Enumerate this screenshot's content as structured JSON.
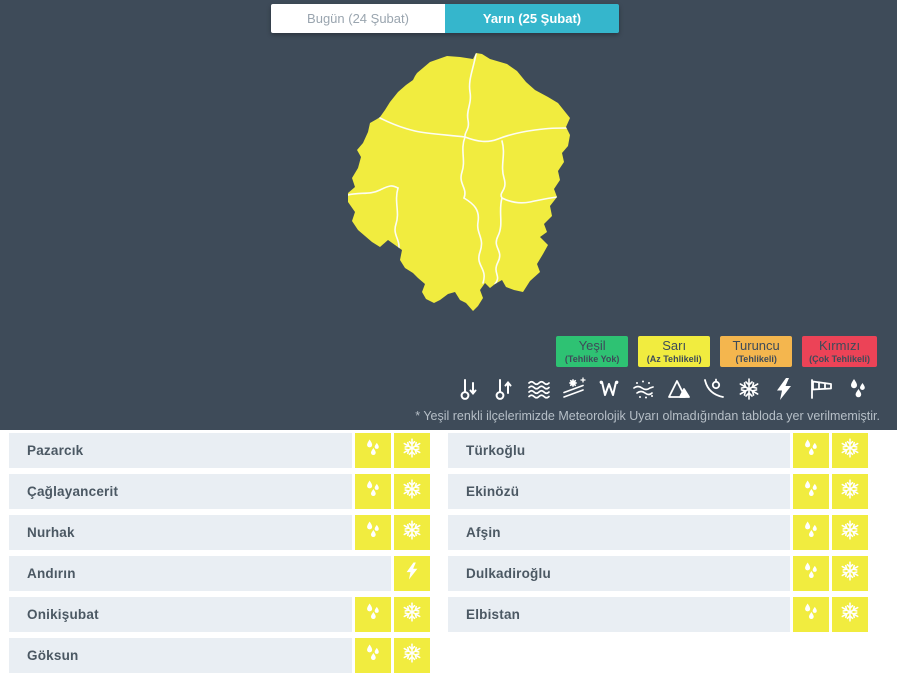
{
  "tabs": [
    {
      "label": "Bugün (24 Şubat)",
      "active": false
    },
    {
      "label": "Yarın (25 Şubat)",
      "active": true
    }
  ],
  "map": {
    "province": "province-warning-map",
    "warning_level": "Sarı (Az Tehlikeli)",
    "fill_color": "#f1ec3f",
    "border_color": "#ffffff"
  },
  "legend": [
    {
      "title": "Yeşil",
      "subtitle": "(Tehlike Yok)",
      "color": "#2ec273"
    },
    {
      "title": "Sarı",
      "subtitle": "(Az Tehlikeli)",
      "color": "#f1ec3f"
    },
    {
      "title": "Turuncu",
      "subtitle": "(Tehlikeli)",
      "color": "#f4b64e"
    },
    {
      "title": "Kırmızı",
      "subtitle": "(Çok Tehlikeli)",
      "color": "#ec4357"
    }
  ],
  "hazard_icons": [
    "temp-drop",
    "temp-rise",
    "fog",
    "road-icing",
    "frost",
    "blowing-snow",
    "avalanche",
    "rockfall",
    "snow",
    "lightning",
    "storm-wind",
    "rain"
  ],
  "note": "* Yeşil renkli ilçelerimizde Meteorolojik Uyarı olmadığından tabloda yer verilmemiştir.",
  "districts": {
    "left": [
      {
        "name": "Pazarcık",
        "warnings": [
          "rain",
          "snow"
        ]
      },
      {
        "name": "Çağlayancerit",
        "warnings": [
          "rain",
          "snow"
        ]
      },
      {
        "name": "Nurhak",
        "warnings": [
          "rain",
          "snow"
        ]
      },
      {
        "name": "Andırın",
        "warnings": [
          "lightning"
        ]
      },
      {
        "name": "Onikişubat",
        "warnings": [
          "rain",
          "snow"
        ]
      },
      {
        "name": "Göksun",
        "warnings": [
          "rain",
          "snow"
        ]
      }
    ],
    "right": [
      {
        "name": "Türkoğlu",
        "warnings": [
          "rain",
          "snow"
        ]
      },
      {
        "name": "Ekinözü",
        "warnings": [
          "rain",
          "snow"
        ]
      },
      {
        "name": "Afşin",
        "warnings": [
          "rain",
          "snow"
        ]
      },
      {
        "name": "Dulkadiroğlu",
        "warnings": [
          "rain",
          "snow"
        ]
      },
      {
        "name": "Elbistan",
        "warnings": [
          "rain",
          "snow"
        ]
      }
    ]
  },
  "colors": {
    "panel_background": "#3e4b59",
    "active_tab": "#35b6cc",
    "row_background": "#e9eef3",
    "row_text": "#4b5863",
    "warning_cell": "#f1ec3f"
  }
}
